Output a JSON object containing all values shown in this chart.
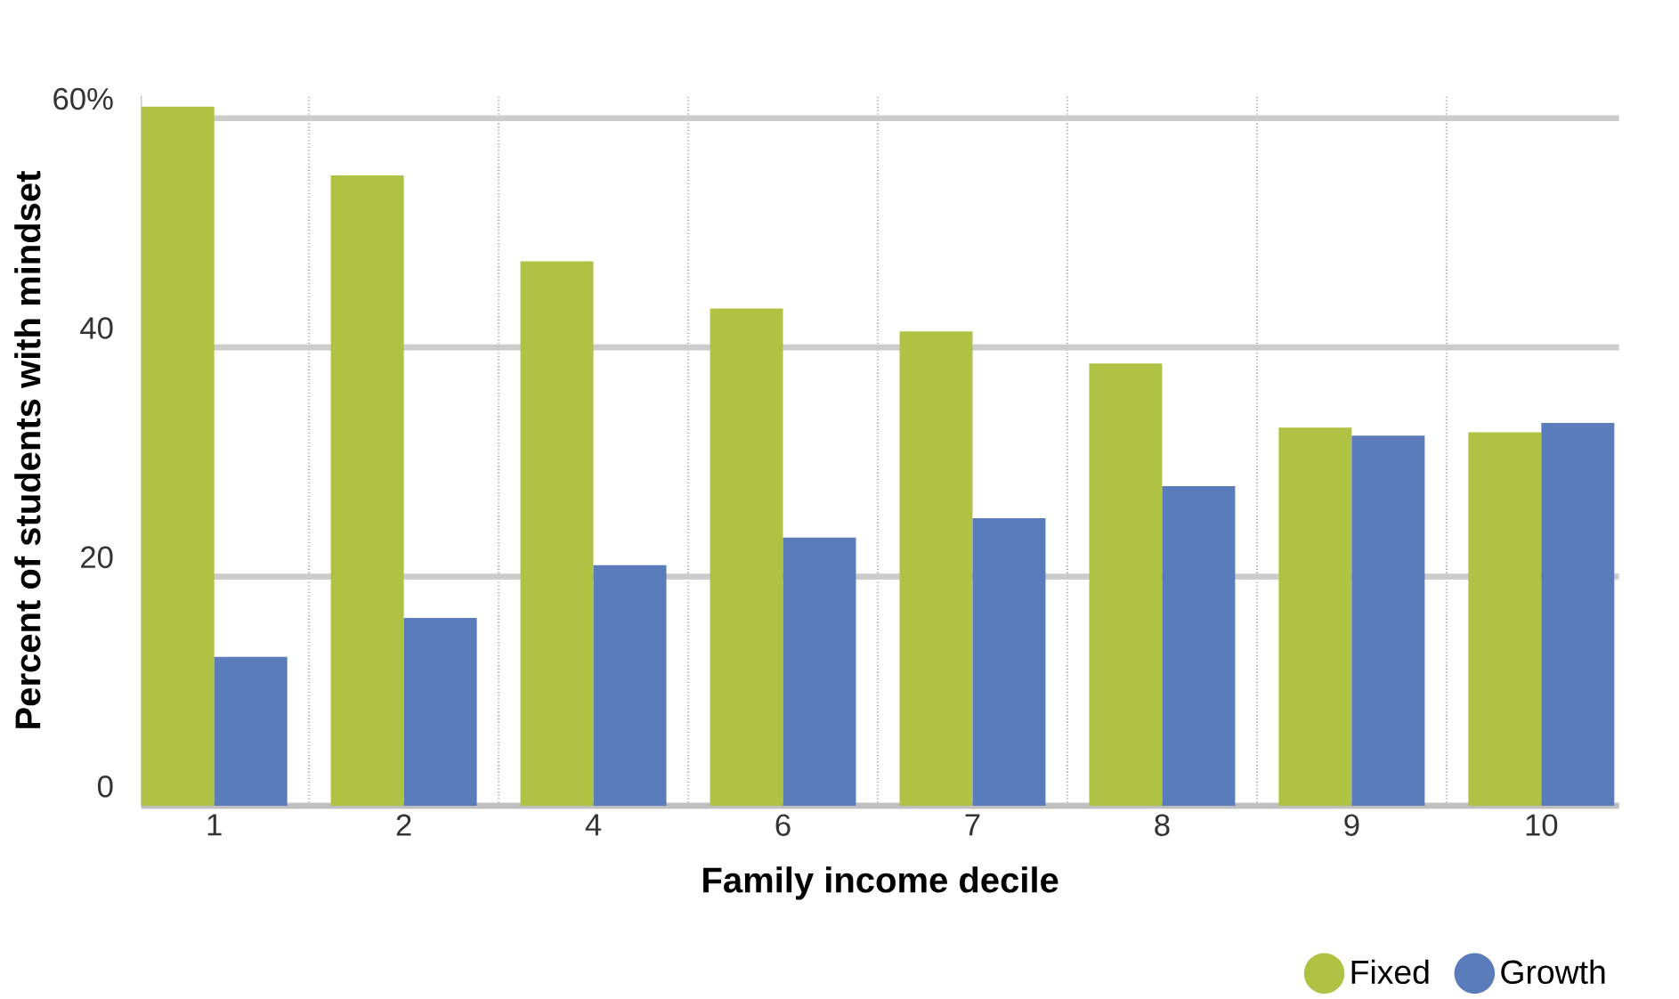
{
  "chart_data": {
    "type": "bar",
    "xlabel": "Family income decile",
    "ylabel": "Percent of students with mindset",
    "categories": [
      "1",
      "2",
      "4",
      "6",
      "7",
      "8",
      "9",
      "10"
    ],
    "series": [
      {
        "name": "Fixed",
        "color": "#afc243",
        "values": [
          61.0,
          55.0,
          47.5,
          43.4,
          41.4,
          38.6,
          33.0,
          32.6
        ]
      },
      {
        "name": "Growth",
        "color": "#5b7cbb",
        "values": [
          13.0,
          16.4,
          21.0,
          23.4,
          25.1,
          27.9,
          32.3,
          33.4
        ]
      }
    ],
    "yticks": [
      0,
      20,
      40,
      {
        "value": 60,
        "label": "60%"
      }
    ],
    "ylim": [
      0,
      62
    ],
    "grid": true,
    "legend": "bottom right",
    "marker": "circle"
  }
}
